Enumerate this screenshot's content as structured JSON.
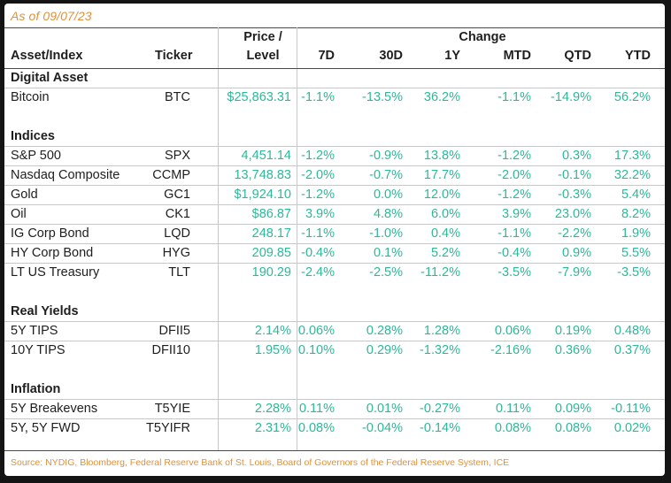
{
  "as_of": "As of 09/07/23",
  "headers": {
    "asset": "Asset/Index",
    "ticker": "Ticker",
    "price_line1": "Price /",
    "price_line2": "Level",
    "change": "Change",
    "periods": [
      "7D",
      "30D",
      "1Y",
      "MTD",
      "QTD",
      "YTD"
    ]
  },
  "sections": [
    {
      "title": "Digital Asset",
      "rows": [
        {
          "asset": "Bitcoin",
          "ticker": "BTC",
          "price": "$25,863.31",
          "changes": [
            "-1.1%",
            "-13.5%",
            "36.2%",
            "-1.1%",
            "-14.9%",
            "56.2%"
          ]
        }
      ]
    },
    {
      "title": "Indices",
      "rows": [
        {
          "asset": "S&P 500",
          "ticker": "SPX",
          "price": "4,451.14",
          "changes": [
            "-1.2%",
            "-0.9%",
            "13.8%",
            "-1.2%",
            "0.3%",
            "17.3%"
          ]
        },
        {
          "asset": "Nasdaq Composite",
          "ticker": "CCMP",
          "price": "13,748.83",
          "changes": [
            "-2.0%",
            "-0.7%",
            "17.7%",
            "-2.0%",
            "-0.1%",
            "32.2%"
          ]
        },
        {
          "asset": "Gold",
          "ticker": "GC1",
          "price": "$1,924.10",
          "changes": [
            "-1.2%",
            "0.0%",
            "12.0%",
            "-1.2%",
            "-0.3%",
            "5.4%"
          ]
        },
        {
          "asset": "Oil",
          "ticker": "CK1",
          "price": "$86.87",
          "changes": [
            "3.9%",
            "4.8%",
            "6.0%",
            "3.9%",
            "23.0%",
            "8.2%"
          ]
        },
        {
          "asset": "IG Corp Bond",
          "ticker": "LQD",
          "price": "248.17",
          "changes": [
            "-1.1%",
            "-1.0%",
            "0.4%",
            "-1.1%",
            "-2.2%",
            "1.9%"
          ]
        },
        {
          "asset": "HY Corp Bond",
          "ticker": "HYG",
          "price": "209.85",
          "changes": [
            "-0.4%",
            "0.1%",
            "5.2%",
            "-0.4%",
            "0.9%",
            "5.5%"
          ]
        },
        {
          "asset": "LT US Treasury",
          "ticker": "TLT",
          "price": "190.29",
          "changes": [
            "-2.4%",
            "-2.5%",
            "-11.2%",
            "-3.5%",
            "-7.9%",
            "-3.5%"
          ]
        }
      ]
    },
    {
      "title": "Real Yields",
      "rows": [
        {
          "asset": "5Y TIPS",
          "ticker": "DFII5",
          "price": "2.14%",
          "changes": [
            "0.06%",
            "0.28%",
            "1.28%",
            "0.06%",
            "0.19%",
            "0.48%"
          ]
        },
        {
          "asset": "10Y TIPS",
          "ticker": "DFII10",
          "price": "1.95%",
          "changes": [
            "0.10%",
            "0.29%",
            "-1.32%",
            "-2.16%",
            "0.36%",
            "0.37%"
          ]
        }
      ]
    },
    {
      "title": "Inflation",
      "rows": [
        {
          "asset": "5Y Breakevens",
          "ticker": "T5YIE",
          "price": "2.28%",
          "changes": [
            "0.11%",
            "0.01%",
            "-0.27%",
            "0.11%",
            "0.09%",
            "-0.11%"
          ]
        },
        {
          "asset": "5Y, 5Y FWD",
          "ticker": "T5YIFR",
          "price": "2.31%",
          "changes": [
            "0.08%",
            "-0.04%",
            "-0.14%",
            "0.08%",
            "0.08%",
            "0.02%"
          ]
        }
      ]
    }
  ],
  "source": "Source: NYDIG, Bloomberg, Federal Reserve Bank of St. Louis, Board of Governors of the Federal Reserve System, ICE",
  "colors": {
    "accent": "#e0913a",
    "value": "#2db89a",
    "text": "#1e1e1e"
  }
}
